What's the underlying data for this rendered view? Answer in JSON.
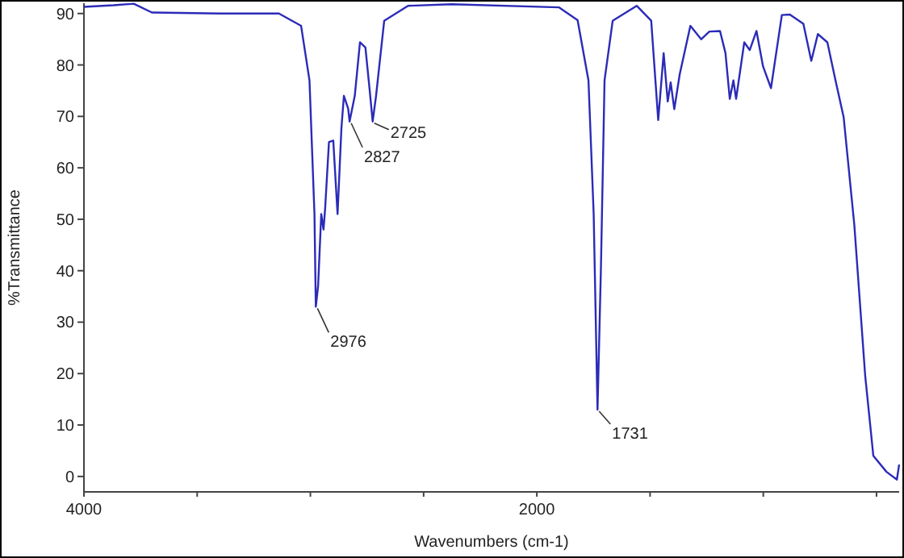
{
  "chart_data": {
    "type": "line",
    "xlabel": "Wavenumbers (cm-1)",
    "ylabel": "%Transmittance",
    "xlim": [
      4000,
      400
    ],
    "ylim": [
      -3,
      92
    ],
    "xticks": [
      4000,
      {
        "value": 3500,
        "label": null
      },
      {
        "value": 3000,
        "label": null
      },
      {
        "value": 2500,
        "label": null
      },
      2000,
      {
        "value": 1500,
        "label": null
      },
      {
        "value": 1000,
        "label": null
      },
      {
        "value": 500,
        "label": null
      }
    ],
    "yticks": [
      0,
      10,
      20,
      30,
      40,
      50,
      60,
      70,
      80,
      90
    ],
    "grid": false,
    "marker": "none",
    "line_style": "solid",
    "series": [
      {
        "color": "#2b2bb8",
        "x": [
          4000,
          3870,
          3780,
          3700,
          3400,
          3139,
          3041,
          3004,
          2982,
          2976,
          2966,
          2952,
          2942,
          2935,
          2918,
          2899,
          2880,
          2863,
          2852,
          2833,
          2827,
          2804,
          2781,
          2757,
          2738,
          2725,
          2710,
          2674,
          2569,
          2377,
          1903,
          1820,
          1772,
          1749,
          1732,
          1717,
          1701,
          1665,
          1559,
          1495,
          1464,
          1440,
          1422,
          1409,
          1393,
          1369,
          1322,
          1274,
          1238,
          1191,
          1167,
          1148,
          1132,
          1120,
          1084,
          1060,
          1030,
          1001,
          966,
          918,
          883,
          823,
          788,
          759,
          717,
          681,
          645,
          598,
          550,
          514,
          456,
          410,
          400
        ],
        "values": [
          91.3,
          91.6,
          91.9,
          90.2,
          90,
          90,
          87.6,
          77,
          51,
          33,
          37,
          51,
          48,
          52,
          65,
          65.3,
          51,
          67.7,
          74,
          71.5,
          69,
          74,
          84.4,
          83.4,
          75,
          69,
          74,
          88.6,
          91.5,
          91.8,
          91.2,
          88.7,
          77,
          51,
          13,
          40.5,
          77,
          88.6,
          91.5,
          88.6,
          69.3,
          82.3,
          72.9,
          76.6,
          71.4,
          78.2,
          87.6,
          85,
          86.5,
          86.6,
          82.3,
          73.4,
          77,
          73.4,
          84.4,
          82.9,
          86.6,
          79.7,
          75.5,
          89.7,
          89.8,
          88,
          80.8,
          86,
          84.4,
          77,
          69.8,
          48.9,
          19.6,
          4,
          0.9,
          -0.6,
          2.3
        ]
      }
    ],
    "annotations": [
      {
        "text": "2976",
        "x": 2976,
        "y": 33
      },
      {
        "text": "2827",
        "x": 2827,
        "y": 69
      },
      {
        "text": "2725",
        "x": 2725,
        "y": 69
      },
      {
        "text": "1731",
        "x": 1732,
        "y": 13
      }
    ]
  }
}
